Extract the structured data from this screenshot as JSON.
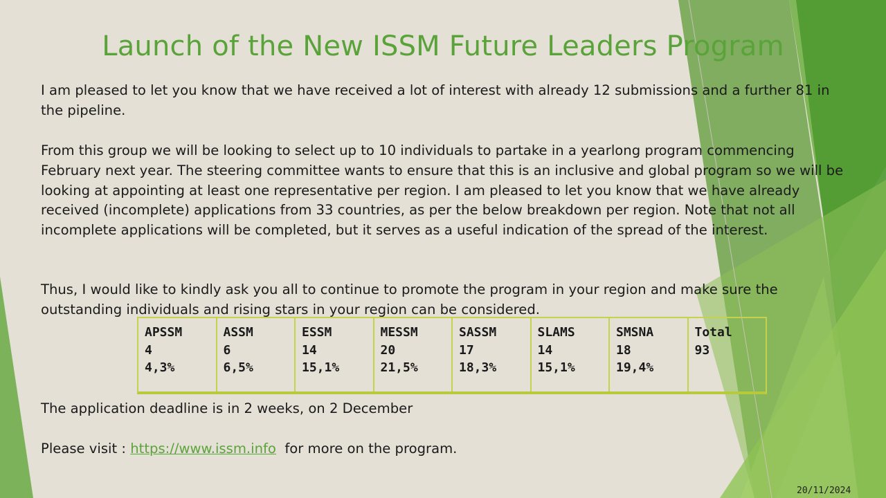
{
  "title": "Launch of the New ISSM Future Leaders Program",
  "paragraphs": {
    "p1": "I am pleased to let you know that we have received a lot of interest with already 12 submissions and a further 81 in the pipeline.",
    "p2": "From this group we will be looking to select up to 10 individuals to partake in a yearlong program commencing February next year. The steering committee wants to ensure that this is an inclusive and global program so we will be looking at appointing at least one representative per region. I am pleased to let you know that we have already received (incomplete) applications from 33 countries, as per the below breakdown per region. Note that not all incomplete applications will be completed, but it serves as a useful indication of the spread of the interest.",
    "p3": "Thus, I would like to kindly ask you all to continue to promote the program in your region and make sure the outstanding individuals and rising stars in your region can be considered.",
    "p4": "The application deadline is in 2 weeks, on 2 December",
    "p5_prefix": "Please visit : ",
    "p5_link": "https://www.issm.info",
    "p5_suffix": "  for more on the program."
  },
  "table": {
    "columns": [
      {
        "region": "APSSM",
        "count": "4",
        "percent": "4,3%"
      },
      {
        "region": "ASSM",
        "count": "6",
        "percent": "6,5%"
      },
      {
        "region": "ESSM",
        "count": "14",
        "percent": "15,1%"
      },
      {
        "region": "MESSM",
        "count": "20",
        "percent": "21,5%"
      },
      {
        "region": "SASSM",
        "count": "17",
        "percent": "18,3%"
      },
      {
        "region": "SLAMS",
        "count": "14",
        "percent": "15,1%"
      },
      {
        "region": "SMSNA",
        "count": "18",
        "percent": "19,4%"
      },
      {
        "region": "Total",
        "count": "93",
        "percent": ""
      }
    ]
  },
  "footer": {
    "date": "20/11/2024"
  },
  "colors": {
    "accent_green": "#5aa33a",
    "background": "#e5e0d6",
    "table_border": "#c5d24d"
  }
}
